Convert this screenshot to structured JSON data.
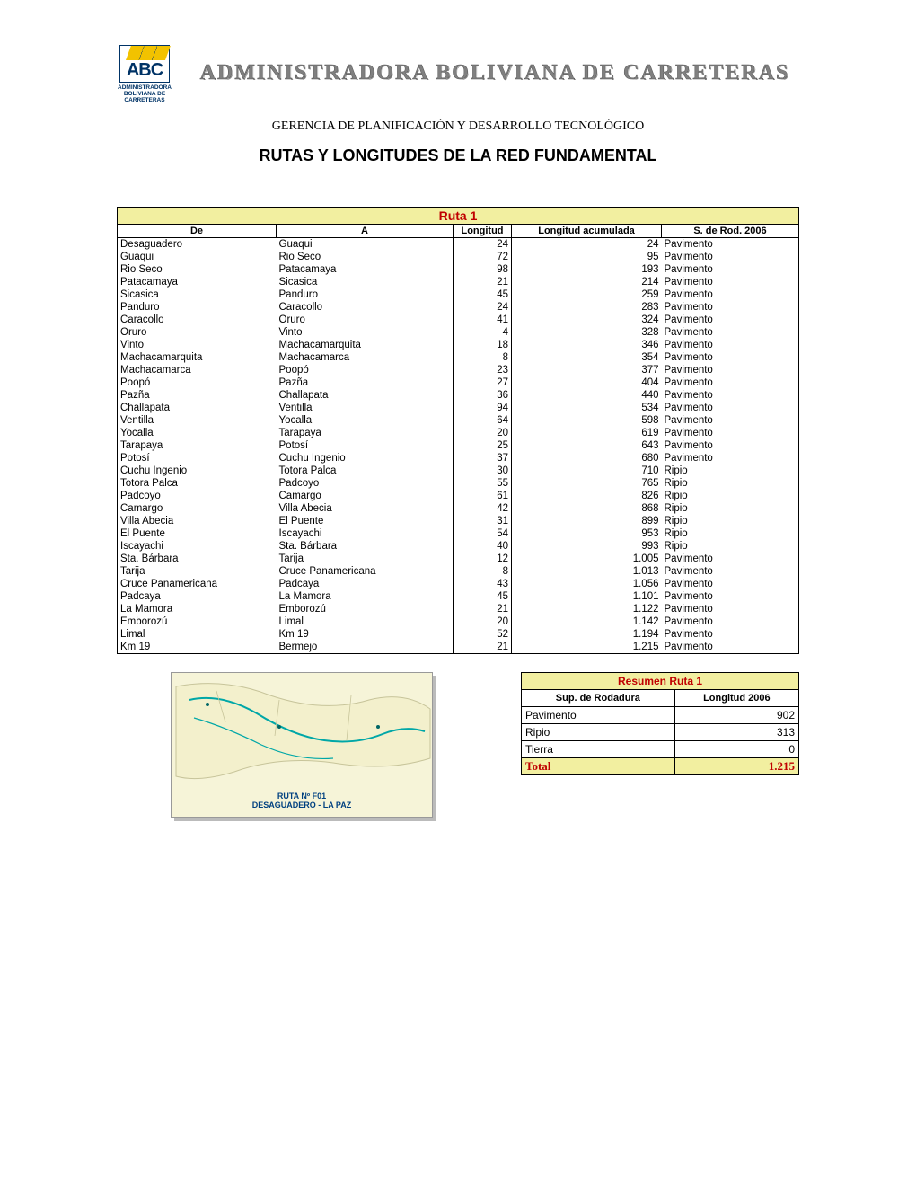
{
  "colors": {
    "header_bg": "#f2efa0",
    "header_fg": "#c00000",
    "border": "#000000",
    "page_bg": "#ffffff",
    "org_fg": "#808080",
    "logo_blue": "#003366",
    "logo_yellow": "#f2c200"
  },
  "fonts": {
    "body": "Arial",
    "serif": "Times New Roman",
    "base_size_pt": 9,
    "title_size_pt": 14
  },
  "logo": {
    "letters": "ABC",
    "caption_l1": "ADMINISTRADORA",
    "caption_l2": "BOLIVIANA DE",
    "caption_l3": "CARRETERAS"
  },
  "org_title": "ADMINISTRADORA BOLIVIANA DE CARRETERAS",
  "subtitle": "GERENCIA DE PLANIFICACIÓN Y DESARROLLO TECNOLÓGICO",
  "main_title": "RUTAS Y LONGITUDES DE  LA RED FUNDAMENTAL",
  "route": {
    "title": "Ruta 1",
    "columns": {
      "de": "De",
      "a": "A",
      "long": "Longitud",
      "acum": "Longitud acumulada",
      "rod": "S. de Rod. 2006"
    },
    "rows": [
      {
        "de": "Desaguadero",
        "a": "Guaqui",
        "long": "24",
        "acum": "24",
        "rod": "Pavimento"
      },
      {
        "de": "Guaqui",
        "a": "Rio Seco",
        "long": "72",
        "acum": "95",
        "rod": "Pavimento"
      },
      {
        "de": "Rio Seco",
        "a": "Patacamaya",
        "long": "98",
        "acum": "193",
        "rod": "Pavimento"
      },
      {
        "de": "Patacamaya",
        "a": "Sicasica",
        "long": "21",
        "acum": "214",
        "rod": "Pavimento"
      },
      {
        "de": "Sicasica",
        "a": "Panduro",
        "long": "45",
        "acum": "259",
        "rod": "Pavimento"
      },
      {
        "de": "Panduro",
        "a": "Caracollo",
        "long": "24",
        "acum": "283",
        "rod": "Pavimento"
      },
      {
        "de": "Caracollo",
        "a": "Oruro",
        "long": "41",
        "acum": "324",
        "rod": "Pavimento"
      },
      {
        "de": "Oruro",
        "a": "Vinto",
        "long": "4",
        "acum": "328",
        "rod": "Pavimento"
      },
      {
        "de": "Vinto",
        "a": "Machacamarquita",
        "long": "18",
        "acum": "346",
        "rod": "Pavimento"
      },
      {
        "de": "Machacamarquita",
        "a": "Machacamarca",
        "long": "8",
        "acum": "354",
        "rod": "Pavimento"
      },
      {
        "de": "Machacamarca",
        "a": "Poopó",
        "long": "23",
        "acum": "377",
        "rod": "Pavimento"
      },
      {
        "de": "Poopó",
        "a": "Pazña",
        "long": "27",
        "acum": "404",
        "rod": "Pavimento"
      },
      {
        "de": "Pazña",
        "a": "Challapata",
        "long": "36",
        "acum": "440",
        "rod": "Pavimento"
      },
      {
        "de": "Challapata",
        "a": "Ventilla",
        "long": "94",
        "acum": "534",
        "rod": "Pavimento"
      },
      {
        "de": "Ventilla",
        "a": "Yocalla",
        "long": "64",
        "acum": "598",
        "rod": "Pavimento"
      },
      {
        "de": "Yocalla",
        "a": "Tarapaya",
        "long": "20",
        "acum": "619",
        "rod": "Pavimento"
      },
      {
        "de": "Tarapaya",
        "a": "Potosí",
        "long": "25",
        "acum": "643",
        "rod": "Pavimento"
      },
      {
        "de": "Potosí",
        "a": "Cuchu Ingenio",
        "long": "37",
        "acum": "680",
        "rod": "Pavimento"
      },
      {
        "de": "Cuchu Ingenio",
        "a": "Totora Palca",
        "long": "30",
        "acum": "710",
        "rod": "Ripio"
      },
      {
        "de": "Totora Palca",
        "a": "Padcoyo",
        "long": "55",
        "acum": "765",
        "rod": "Ripio"
      },
      {
        "de": "Padcoyo",
        "a": "Camargo",
        "long": "61",
        "acum": "826",
        "rod": "Ripio"
      },
      {
        "de": "Camargo",
        "a": "Villa Abecia",
        "long": "42",
        "acum": "868",
        "rod": "Ripio"
      },
      {
        "de": "Villa Abecia",
        "a": "El Puente",
        "long": "31",
        "acum": "899",
        "rod": "Ripio"
      },
      {
        "de": "El Puente",
        "a": "Iscayachi",
        "long": "54",
        "acum": "953",
        "rod": "Ripio"
      },
      {
        "de": "Iscayachi",
        "a": "Sta. Bárbara",
        "long": "40",
        "acum": "993",
        "rod": "Ripio"
      },
      {
        "de": "Sta. Bárbara",
        "a": "Tarija",
        "long": "12",
        "acum": "1.005",
        "rod": "Pavimento"
      },
      {
        "de": "Tarija",
        "a": "Cruce Panamericana",
        "long": "8",
        "acum": "1.013",
        "rod": "Pavimento"
      },
      {
        "de": "Cruce Panamericana",
        "a": "Padcaya",
        "long": "43",
        "acum": "1.056",
        "rod": "Pavimento"
      },
      {
        "de": "Padcaya",
        "a": "La Mamora",
        "long": "45",
        "acum": "1.101",
        "rod": "Pavimento"
      },
      {
        "de": "La Mamora",
        "a": "Emborozú",
        "long": "21",
        "acum": "1.122",
        "rod": "Pavimento"
      },
      {
        "de": "Emborozú",
        "a": "Limal",
        "long": "20",
        "acum": "1.142",
        "rod": "Pavimento"
      },
      {
        "de": "Limal",
        "a": "Km 19",
        "long": "52",
        "acum": "1.194",
        "rod": "Pavimento"
      },
      {
        "de": "Km 19",
        "a": "Bermejo",
        "long": "21",
        "acum": "1.215",
        "rod": "Pavimento"
      }
    ]
  },
  "map": {
    "caption_l1": "RUTA Nº F01",
    "caption_l2": "DESAGUADERO - LA PAZ",
    "bg_color": "#f6f4d8",
    "route_color": "#00a7a7",
    "border_color": "#999999"
  },
  "summary": {
    "title": "Resumen Ruta 1",
    "col_left": "Sup. de Rodadura",
    "col_right": "Longitud 2006",
    "rows": [
      {
        "label": "Pavimento",
        "value": "902"
      },
      {
        "label": "Ripio",
        "value": "313"
      },
      {
        "label": "Tierra",
        "value": "0"
      }
    ],
    "total_label": "Total",
    "total_value": "1.215"
  }
}
